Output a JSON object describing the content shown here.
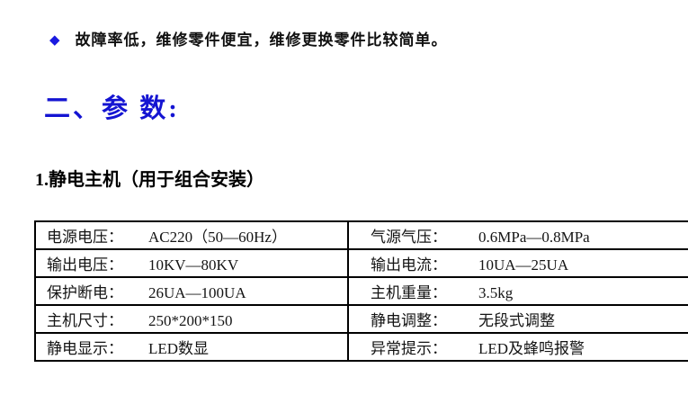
{
  "page": {
    "background": "#ffffff",
    "text_color": "#111111",
    "border_color": "#000000"
  },
  "bullet": {
    "icon": "◆",
    "icon_name": "diamond-bullet-icon",
    "icon_color": "#1a1ae0",
    "text": "故障率低，维修零件便宜，维修更换零件比较简单。"
  },
  "heading": {
    "text": "二、参 数:",
    "color": "#1414d2"
  },
  "subheading": {
    "text": "1.静电主机（用于组合安装）"
  },
  "table": {
    "rows": [
      {
        "cells": [
          {
            "label": "电源电压：",
            "value": "AC220（50—60Hz）"
          },
          {
            "label": "气源气压：",
            "value": "0.6MPa—0.8MPa"
          }
        ]
      },
      {
        "cells": [
          {
            "label": "输出电压：",
            "value": "10KV—80KV"
          },
          {
            "label": "输出电流：",
            "value": "10UA—25UA"
          }
        ]
      },
      {
        "cells": [
          {
            "label": "保护断电：",
            "value": "26UA—100UA"
          },
          {
            "label": "主机重量：",
            "value": "3.5kg"
          }
        ]
      },
      {
        "cells": [
          {
            "label": "主机尺寸：",
            "value": "250*200*150"
          },
          {
            "label": "静电调整：",
            "value": "无段式调整"
          }
        ]
      },
      {
        "cells": [
          {
            "label": "静电显示：",
            "value": "LED数显"
          },
          {
            "label": "异常提示：",
            "value": "LED及蜂鸣报警"
          }
        ]
      }
    ]
  }
}
